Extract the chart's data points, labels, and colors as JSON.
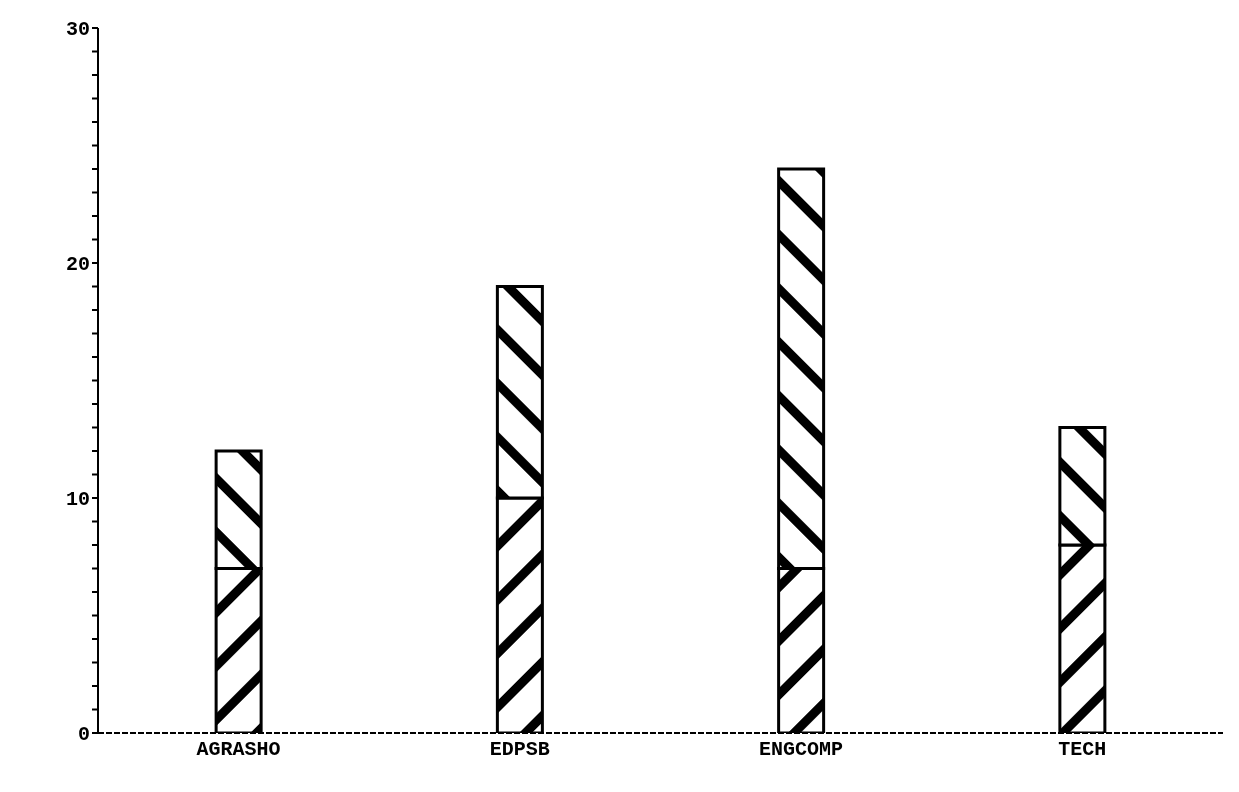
{
  "chart_data": {
    "type": "bar",
    "stacked": true,
    "categories": [
      "AGRASHO",
      "EDPSB",
      "ENGCOMP",
      "TECH"
    ],
    "series": [
      {
        "color": "#000000",
        "values": [
          7,
          10,
          7,
          8
        ]
      },
      {
        "color": "#000000",
        "values": [
          5,
          9,
          17,
          5
        ]
      }
    ],
    "ylim": [
      0,
      30
    ],
    "yticks": [
      0,
      {
        "value": 1,
        "label": null
      },
      {
        "value": 2,
        "label": null
      },
      {
        "value": 3,
        "label": null
      },
      {
        "value": 4,
        "label": null
      },
      {
        "value": 5,
        "label": null
      },
      {
        "value": 6,
        "label": null
      },
      {
        "value": 7,
        "label": null
      },
      {
        "value": 8,
        "label": null
      },
      {
        "value": 9,
        "label": null
      },
      10,
      {
        "value": 11,
        "label": null
      },
      {
        "value": 12,
        "label": null
      },
      {
        "value": 13,
        "label": null
      },
      {
        "value": 14,
        "label": null
      },
      {
        "value": 15,
        "label": null
      },
      {
        "value": 16,
        "label": null
      },
      {
        "value": 17,
        "label": null
      },
      {
        "value": 18,
        "label": null
      },
      {
        "value": 19,
        "label": null
      },
      20,
      {
        "value": 21,
        "label": null
      },
      {
        "value": 22,
        "label": null
      },
      {
        "value": 23,
        "label": null
      },
      {
        "value": 24,
        "label": null
      },
      {
        "value": 25,
        "label": null
      },
      {
        "value": 26,
        "label": null
      },
      {
        "value": 27,
        "label": null
      },
      {
        "value": 28,
        "label": null
      },
      {
        "value": 29,
        "label": null
      },
      30
    ],
    "grid": false,
    "legend": false
  }
}
